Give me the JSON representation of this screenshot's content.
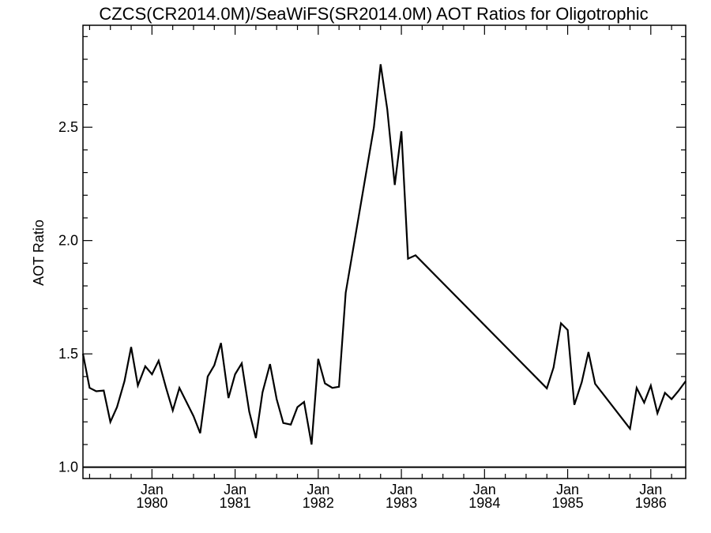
{
  "chart_data": {
    "type": "line",
    "title": "CZCS(CR2014.0M)/SeaWiFS(SR2014.0M)  AOT Ratios for Oligotrophic",
    "xlabel": "",
    "ylabel": "AOT Ratio",
    "x_unit": "decimal year",
    "xlim": [
      1979.17,
      1986.42
    ],
    "ylim": [
      0.95,
      2.95
    ],
    "y_ticks": [
      1.0,
      1.5,
      2.0,
      2.5
    ],
    "y_tick_labels": [
      "1.0",
      "1.5",
      "2.0",
      "2.5"
    ],
    "x_ticks": [
      {
        "x": 1980.0,
        "line1": "Jan",
        "line2": "1980"
      },
      {
        "x": 1981.0,
        "line1": "Jan",
        "line2": "1981"
      },
      {
        "x": 1982.0,
        "line1": "Jan",
        "line2": "1982"
      },
      {
        "x": 1983.0,
        "line1": "Jan",
        "line2": "1983"
      },
      {
        "x": 1984.0,
        "line1": "Jan",
        "line2": "1984"
      },
      {
        "x": 1985.0,
        "line1": "Jan",
        "line2": "1985"
      },
      {
        "x": 1986.0,
        "line1": "Jan",
        "line2": "1986"
      }
    ],
    "reference_line_y": 1.0,
    "grid": false,
    "series": [
      {
        "points": [
          [
            1979.17,
            1.5
          ],
          [
            1979.25,
            1.35
          ],
          [
            1979.33,
            1.335
          ],
          [
            1979.42,
            1.338
          ],
          [
            1979.5,
            1.2
          ],
          [
            1979.58,
            1.265
          ],
          [
            1979.67,
            1.38
          ],
          [
            1979.75,
            1.53
          ],
          [
            1979.83,
            1.36
          ],
          [
            1979.92,
            1.445
          ],
          [
            1980.0,
            1.41
          ],
          [
            1980.08,
            1.47
          ],
          [
            1980.17,
            1.35
          ],
          [
            1980.25,
            1.25
          ],
          [
            1980.33,
            1.35
          ],
          [
            1980.5,
            1.225
          ],
          [
            1980.58,
            1.15
          ],
          [
            1980.67,
            1.4
          ],
          [
            1980.75,
            1.45
          ],
          [
            1980.83,
            1.548
          ],
          [
            1980.92,
            1.305
          ],
          [
            1981.0,
            1.41
          ],
          [
            1981.08,
            1.458
          ],
          [
            1981.17,
            1.245
          ],
          [
            1981.25,
            1.128
          ],
          [
            1981.33,
            1.33
          ],
          [
            1981.42,
            1.455
          ],
          [
            1981.5,
            1.3
          ],
          [
            1981.58,
            1.195
          ],
          [
            1981.67,
            1.188
          ],
          [
            1981.75,
            1.265
          ],
          [
            1981.83,
            1.288
          ],
          [
            1981.92,
            1.1
          ],
          [
            1982.0,
            1.478
          ],
          [
            1982.08,
            1.37
          ],
          [
            1982.17,
            1.35
          ],
          [
            1982.25,
            1.355
          ],
          [
            1982.33,
            1.77
          ],
          [
            1982.67,
            2.5
          ],
          [
            1982.75,
            2.778
          ],
          [
            1982.83,
            2.58
          ],
          [
            1982.92,
            2.245
          ],
          [
            1983.0,
            2.482
          ],
          [
            1983.08,
            1.92
          ],
          [
            1983.17,
            1.935
          ],
          [
            1984.75,
            1.348
          ],
          [
            1984.83,
            1.44
          ],
          [
            1984.92,
            1.635
          ],
          [
            1985.0,
            1.605
          ],
          [
            1985.08,
            1.275
          ],
          [
            1985.17,
            1.375
          ],
          [
            1985.25,
            1.508
          ],
          [
            1985.33,
            1.368
          ],
          [
            1985.75,
            1.17
          ],
          [
            1985.83,
            1.35
          ],
          [
            1985.92,
            1.285
          ],
          [
            1986.0,
            1.36
          ],
          [
            1986.08,
            1.238
          ],
          [
            1986.17,
            1.328
          ],
          [
            1986.25,
            1.3
          ],
          [
            1986.33,
            1.335
          ],
          [
            1986.42,
            1.38
          ]
        ]
      }
    ]
  }
}
